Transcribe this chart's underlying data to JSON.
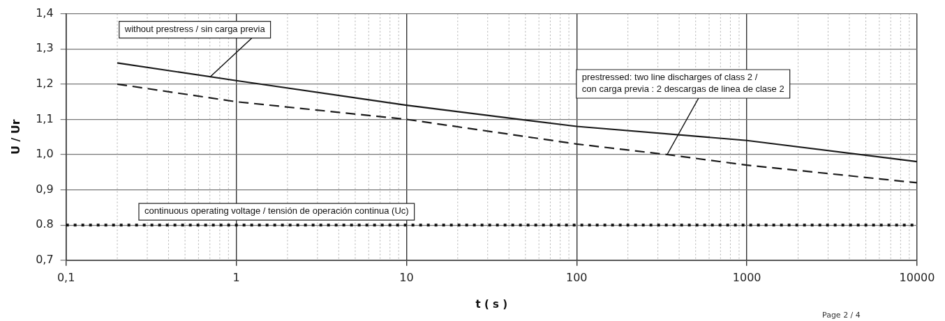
{
  "chart_data": {
    "type": "line",
    "xlabel": "t ( s )",
    "ylabel": "U / Ur",
    "log": "x",
    "grid": true,
    "legend": false,
    "marker": "none",
    "xlim": [
      0.1,
      10000
    ],
    "xticks": [
      {
        "value": 0.1,
        "label": "0,1"
      },
      1,
      10,
      100,
      1000,
      10000
    ],
    "ylim": [
      0.7,
      1.4
    ],
    "yticks": [
      {
        "value": 0.7,
        "label": "0,7"
      },
      {
        "value": 0.8,
        "label": "0.8"
      },
      {
        "value": 0.9,
        "label": "0,9"
      },
      {
        "value": 1.0,
        "label": "1,0"
      },
      {
        "value": 1.1,
        "label": "1,1"
      },
      {
        "value": 1.2,
        "label": "1,2"
      },
      {
        "value": 1.3,
        "label": "1,3"
      },
      {
        "value": 1.4,
        "label": "1,4"
      }
    ],
    "series": [
      {
        "color": "#1a1a1a",
        "line_style": "solid",
        "x": [
          0.2,
          1,
          10,
          100,
          1000,
          10000
        ],
        "values": [
          1.26,
          1.21,
          1.14,
          1.08,
          1.04,
          0.98
        ]
      },
      {
        "color": "#1a1a1a",
        "line_style": "dashed",
        "x": [
          0.2,
          1,
          10,
          100,
          340,
          1000,
          10000
        ],
        "values": [
          1.2,
          1.15,
          1.1,
          1.03,
          1.0,
          0.97,
          0.92
        ]
      },
      {
        "color": "#111111",
        "line_style": "dotted",
        "x": [
          0.1,
          10000
        ],
        "values": [
          0.8,
          0.8
        ]
      }
    ],
    "annotations": [
      {
        "text": "without prestress / sin carga previa",
        "x": 0.7,
        "y": 1.22
      },
      {
        "text": "prestressed: two line discharges of class 2 /\ncon carga previa : 2 descargas de linea de clase 2",
        "x": 340,
        "y": 1.0
      },
      {
        "text": "continuous operating voltage / tensión de operación continua (Uc)",
        "x": 5,
        "y": 0.8
      },
      "Page 2 / 4"
    ]
  }
}
